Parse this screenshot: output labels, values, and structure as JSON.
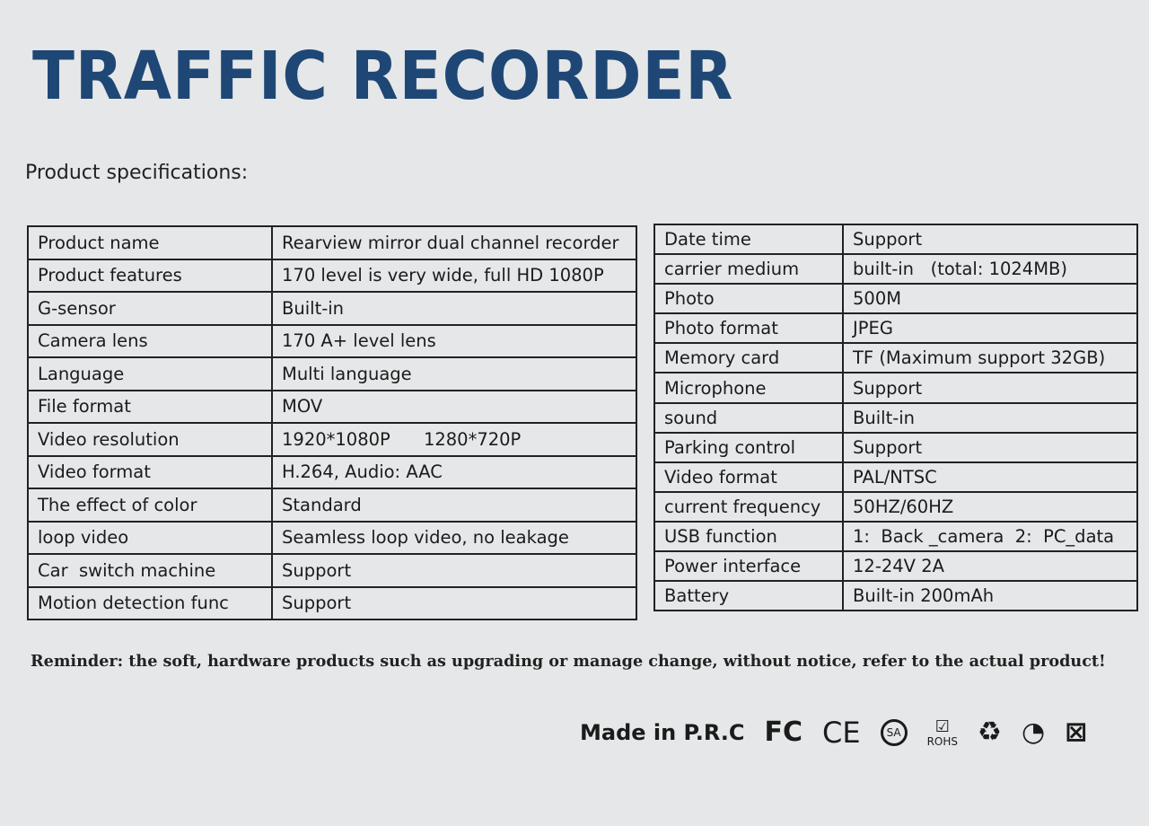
{
  "title": "TRAFFIC RECORDER",
  "subtitle": "Product specifications:",
  "left_table": [
    [
      "Product name",
      "Rearview mirror dual channel recorder"
    ],
    [
      "Product features",
      "170 level is very wide, full HD 1080P"
    ],
    [
      "G-sensor",
      "Built-in"
    ],
    [
      "Camera lens",
      "170 A+ level lens"
    ],
    [
      "Language",
      "Multi language"
    ],
    [
      "File format",
      "MOV"
    ],
    [
      "Video resolution",
      "1920*1080P      1280*720P"
    ],
    [
      "Video format",
      "H.264, Audio: AAC"
    ],
    [
      "The effect of color",
      "Standard"
    ],
    [
      "loop video",
      "Seamless loop video, no leakage"
    ],
    [
      "Car  switch machine",
      "Support"
    ],
    [
      "Motion detection func",
      "Support"
    ]
  ],
  "right_table": [
    [
      "Date time",
      "Support"
    ],
    [
      "carrier medium",
      "built-in   (total: 1024MB)"
    ],
    [
      "Photo",
      "500M"
    ],
    [
      "Photo format",
      "JPEG"
    ],
    [
      "Memory card",
      "TF (Maximum support 32GB)"
    ],
    [
      "Microphone",
      "Support"
    ],
    [
      "sound",
      "Built-in"
    ],
    [
      "Parking control",
      "Support"
    ],
    [
      "Video format",
      "PAL/NTSC"
    ],
    [
      "current frequency",
      "50HZ/60HZ"
    ],
    [
      "USB function",
      "1:  Back _camera  2:  PC_data"
    ],
    [
      "Power interface",
      "12-24V 2A"
    ],
    [
      "Battery",
      "Built-in 200mAh"
    ]
  ],
  "reminder": "Reminder: the soft, hardware products such as upgrading or manage change, without notice, refer to the actual product!",
  "footer": {
    "made_in": "Made in P.R.C",
    "marks": {
      "fcc": "FC",
      "ce": "CE",
      "csa": "SA",
      "rohs": "ROHS"
    },
    "icons": [
      "fcc-icon",
      "ce-icon",
      "csa-icon",
      "rohs-icon",
      "recycle-icon",
      "green-dot-icon",
      "weee-bin-icon"
    ]
  },
  "colors": {
    "title": "#1e4775",
    "background": "#e6e7e8",
    "text": "#1b1b1b"
  }
}
